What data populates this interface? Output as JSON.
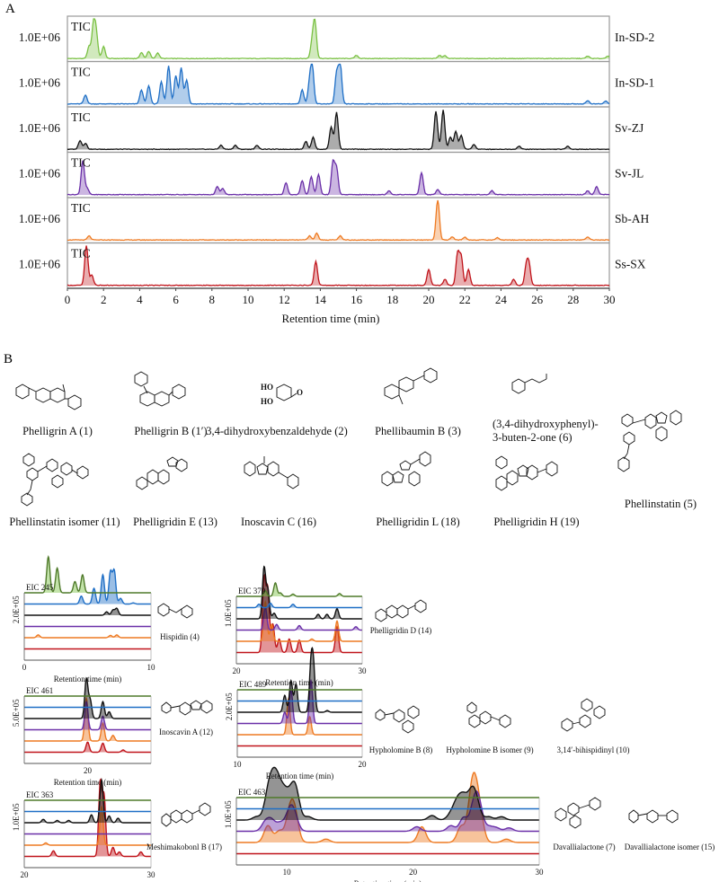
{
  "figure": {
    "panel_a_label": "A",
    "panel_b_label": "B"
  },
  "colors": {
    "In-SD-2": "#7ac143",
    "In-SD-1": "#1f6fc6",
    "Sv-ZJ": "#111111",
    "Sv-JL": "#6a2fa8",
    "Sb-AH": "#ee7a22",
    "Ss-SX": "#c0141b",
    "eic_top_line": "#4f7a2a"
  },
  "chart_data": [
    {
      "type": "area",
      "title": "TIC chromatograms",
      "xlabel": "Retention time (min)",
      "xlim": [
        0,
        30
      ],
      "x_ticks": [
        "0",
        "2",
        "4",
        "6",
        "8",
        "10",
        "12",
        "14",
        "16",
        "18",
        "20",
        "22",
        "24",
        "26",
        "28",
        "30"
      ],
      "track_label": "TIC",
      "y_scale_label": "1.0E+06",
      "grid": false,
      "series": [
        {
          "name": "In-SD-2",
          "peaks": [
            [
              1.2,
              0.3
            ],
            [
              1.45,
              0.85
            ],
            [
              1.6,
              0.55
            ],
            [
              2.0,
              0.3
            ],
            [
              4.1,
              0.15
            ],
            [
              4.5,
              0.18
            ],
            [
              5.0,
              0.14
            ],
            [
              13.55,
              0.4
            ],
            [
              13.7,
              0.88
            ],
            [
              16.0,
              0.08
            ],
            [
              20.6,
              0.08
            ],
            [
              20.9,
              0.07
            ],
            [
              28.8,
              0.06
            ],
            [
              29.9,
              0.06
            ]
          ]
        },
        {
          "name": "In-SD-1",
          "peaks": [
            [
              1.0,
              0.22
            ],
            [
              4.1,
              0.35
            ],
            [
              4.5,
              0.45
            ],
            [
              5.2,
              0.55
            ],
            [
              5.6,
              0.95
            ],
            [
              6.0,
              0.7
            ],
            [
              6.3,
              0.9
            ],
            [
              6.6,
              0.6
            ],
            [
              13.0,
              0.35
            ],
            [
              13.4,
              0.45
            ],
            [
              13.55,
              0.92
            ],
            [
              14.9,
              0.75
            ],
            [
              15.1,
              1.0
            ],
            [
              28.8,
              0.08
            ],
            [
              29.8,
              0.07
            ]
          ]
        },
        {
          "name": "Sv-ZJ",
          "peaks": [
            [
              0.7,
              0.22
            ],
            [
              1.0,
              0.15
            ],
            [
              8.5,
              0.1
            ],
            [
              9.3,
              0.1
            ],
            [
              10.5,
              0.1
            ],
            [
              13.2,
              0.2
            ],
            [
              13.6,
              0.3
            ],
            [
              14.6,
              0.55
            ],
            [
              14.9,
              0.92
            ],
            [
              20.4,
              0.95
            ],
            [
              20.8,
              0.98
            ],
            [
              21.2,
              0.3
            ],
            [
              21.5,
              0.45
            ],
            [
              21.8,
              0.35
            ],
            [
              22.5,
              0.12
            ],
            [
              25.0,
              0.08
            ],
            [
              27.7,
              0.08
            ]
          ]
        },
        {
          "name": "Sv-JL",
          "peaks": [
            [
              0.85,
              0.85
            ],
            [
              1.1,
              0.15
            ],
            [
              8.3,
              0.2
            ],
            [
              8.6,
              0.15
            ],
            [
              12.1,
              0.3
            ],
            [
              13.0,
              0.35
            ],
            [
              13.5,
              0.45
            ],
            [
              13.9,
              0.5
            ],
            [
              14.7,
              0.8
            ],
            [
              14.9,
              0.65
            ],
            [
              17.8,
              0.1
            ],
            [
              19.6,
              0.55
            ],
            [
              20.5,
              0.12
            ],
            [
              23.5,
              0.1
            ],
            [
              28.8,
              0.1
            ],
            [
              29.3,
              0.2
            ]
          ]
        },
        {
          "name": "Sb-AH",
          "peaks": [
            [
              1.2,
              0.1
            ],
            [
              13.4,
              0.1
            ],
            [
              13.8,
              0.17
            ],
            [
              15.1,
              0.1
            ],
            [
              20.5,
              1.0
            ],
            [
              21.3,
              0.08
            ],
            [
              22.0,
              0.07
            ],
            [
              23.8,
              0.06
            ],
            [
              28.8,
              0.08
            ]
          ]
        },
        {
          "name": "Ss-SX",
          "peaks": [
            [
              1.05,
              1.0
            ],
            [
              1.35,
              0.25
            ],
            [
              13.75,
              0.6
            ],
            [
              20.0,
              0.4
            ],
            [
              20.9,
              0.15
            ],
            [
              21.6,
              0.8
            ],
            [
              21.8,
              0.7
            ],
            [
              22.2,
              0.4
            ],
            [
              24.7,
              0.15
            ],
            [
              25.4,
              0.45
            ],
            [
              25.55,
              0.5
            ]
          ]
        }
      ]
    },
    {
      "type": "area",
      "title": "EIC 245",
      "xlabel": "Retention time (min)",
      "xlim": [
        0,
        10
      ],
      "x_ticks": [
        "0",
        "10"
      ],
      "y_scale_label": "2.0E+05",
      "compound": "Hispidin (4)"
    },
    {
      "type": "area",
      "title": "EIC 379",
      "xlabel": "Retention time (min)",
      "xlim": [
        20,
        30
      ],
      "x_ticks": [
        "20",
        "30"
      ],
      "y_scale_label": "1.0E+05",
      "compound": "Phelligridin D (14)"
    },
    {
      "type": "area",
      "title": "EIC 461",
      "xlabel": "Retention time (min)",
      "xlim": [
        15,
        25
      ],
      "x_ticks": [
        "20"
      ],
      "y_scale_label": "5.0E+05",
      "compound": "Inoscavin A (12)"
    },
    {
      "type": "area",
      "title": "EIC 489",
      "xlabel": "Retention time (min)",
      "xlim": [
        10,
        20
      ],
      "x_ticks": [
        "10",
        "20"
      ],
      "y_scale_label": "2.0E+05",
      "compound": "Hypholomine B (8)"
    },
    {
      "type": "area",
      "title": "EIC 363",
      "xlabel": "Retention time (min)",
      "xlim": [
        20,
        30
      ],
      "x_ticks": [
        "20",
        "30"
      ],
      "y_scale_label": "1.0E+05",
      "compound": "Meshimakobonl B (17)"
    },
    {
      "type": "area",
      "title": "EIC 463",
      "xlabel": "Retention time (min)",
      "xlim": [
        6,
        30
      ],
      "x_ticks": [
        "10",
        "20",
        "30"
      ],
      "y_scale_label": "1.0E+05",
      "compound": "Davallialactone (7)"
    }
  ],
  "compounds_row1": [
    "Phelligrin A (1)",
    "Phelligrin B (1′)",
    "3,4-dihydroxybenzaldehyde (2)",
    "Phellibaumin B (3)",
    "(3,4-dihydroxyphenyl)-",
    "3-buten-2-one (6)"
  ],
  "compounds_row2": [
    "Phellinstatin isomer (11)",
    "Phelligridin E (13)",
    "Inoscavin C (16)",
    "Phelligridin L (18)",
    "Phelligridin H (19)",
    "Phellinstatin (5)"
  ],
  "compounds_eic": [
    "Hispidin (4)",
    "Phelligridin D (14)",
    "Inoscavin A (12)",
    "Hypholomine B (8)",
    "Hypholomine B isomer (9)",
    "3,14′-bihispidinyl (10)",
    "Meshimakobonl B (17)",
    "Davallialactone (7)",
    "Davallialactone isomer (15)"
  ]
}
